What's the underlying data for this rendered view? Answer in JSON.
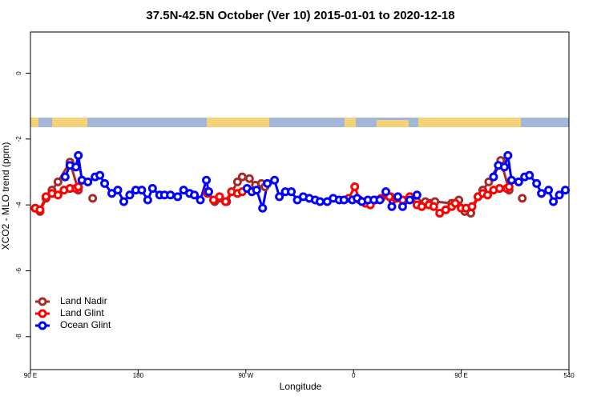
{
  "chart_data": {
    "type": "line",
    "title": "37.5N-42.5N October (Ver 10)   2015-01-01 to 2020-12-18",
    "x_label": "Longitude",
    "y_label": "XCO2 - MLO trend (ppm)",
    "xlim": [
      90,
      540
    ],
    "xticks": [
      {
        "value": 90,
        "label": "90 E"
      },
      180,
      {
        "value": 270,
        "label": "90 W"
      },
      {
        "value": 360,
        "label": "0"
      },
      {
        "value": 450,
        "label": "90 E"
      },
      540
    ],
    "ylim": [
      -9.0,
      1.25
    ],
    "yticks": [
      -8,
      -6,
      -4,
      -2,
      0
    ],
    "legend": "bottom-left",
    "series": [
      {
        "name": "Land Nadir",
        "color": "#a52a2a",
        "x": [
          94,
          98,
          103,
          108,
          113,
          123,
          130,
          null,
          142,
          null,
          238,
          244,
          248,
          254,
          263,
          267,
          273,
          278,
          283,
          286,
          null,
          391,
          395,
          407,
          413,
          420,
          424,
          428,
          442,
          448,
          453,
          458,
          464,
          468,
          473,
          483,
          490,
          null,
          501
        ],
        "values": [
          -4.1,
          -4.2,
          -3.8,
          -3.55,
          -3.3,
          -2.7,
          -3.55,
          null,
          -3.8,
          null,
          -3.6,
          -3.9,
          -3.8,
          -3.9,
          -3.3,
          -3.15,
          -3.2,
          -3.4,
          -3.35,
          -3.45,
          null,
          -3.75,
          -3.8,
          -3.75,
          -3.9,
          -3.9,
          -3.95,
          -3.9,
          -3.95,
          -3.85,
          -4.2,
          -4.25,
          -3.75,
          -3.55,
          -3.3,
          -2.65,
          -3.55,
          null,
          -3.8
        ]
      },
      {
        "name": "Land Glint",
        "color": "#ff0000",
        "x": [
          94,
          98,
          103,
          108,
          113,
          118,
          123,
          128,
          130,
          null,
          238,
          243,
          248,
          253,
          258,
          263,
          267,
          null,
          356,
          361,
          365,
          370,
          374,
          378,
          383,
          390,
          396,
          401,
          407,
          413,
          417,
          423,
          427,
          432,
          437,
          442,
          445,
          450,
          454,
          459,
          464,
          468,
          472,
          477,
          482,
          488,
          490
        ],
        "values": [
          -4.1,
          -4.15,
          -3.75,
          -3.65,
          -3.7,
          -3.55,
          -3.5,
          -3.5,
          -3.45,
          null,
          -3.65,
          -3.85,
          -3.75,
          -3.9,
          -3.6,
          -3.65,
          -3.6,
          null,
          -3.8,
          -3.45,
          -3.85,
          -3.95,
          -4.0,
          -3.85,
          -3.8,
          -3.75,
          -3.8,
          -3.85,
          -3.75,
          -4.0,
          -4.05,
          -4.0,
          -4.05,
          -4.25,
          -4.15,
          -4.05,
          -3.95,
          -4.1,
          -4.1,
          -4.05,
          -3.75,
          -3.65,
          -3.7,
          -3.55,
          -3.5,
          -3.5,
          -3.45
        ]
      },
      {
        "name": "Ocean Glint",
        "color": "#0000ff",
        "x": [
          119,
          123,
          128,
          130,
          133,
          138,
          144,
          148,
          152,
          158,
          163,
          168,
          173,
          178,
          183,
          188,
          192,
          198,
          202,
          207,
          213,
          218,
          223,
          227,
          232,
          237,
          239,
          null,
          271,
          275,
          279,
          284,
          288,
          294,
          298,
          303,
          308,
          313,
          318,
          323,
          328,
          332,
          338,
          343,
          348,
          352,
          359,
          363,
          367,
          372,
          377,
          382,
          387,
          392,
          397,
          401,
          407,
          413,
          null,
          477,
          481,
          486,
          489,
          492,
          498,
          503,
          507,
          513,
          517,
          523,
          527,
          532,
          537
        ],
        "values": [
          -3.15,
          -2.8,
          -2.85,
          -2.5,
          -3.25,
          -3.3,
          -3.15,
          -3.1,
          -3.35,
          -3.65,
          -3.55,
          -3.9,
          -3.7,
          -3.55,
          -3.55,
          -3.85,
          -3.5,
          -3.7,
          -3.7,
          -3.7,
          -3.75,
          -3.55,
          -3.65,
          -3.7,
          -3.85,
          -3.25,
          -3.6,
          null,
          -3.5,
          -3.6,
          -3.55,
          -4.1,
          -3.35,
          -3.25,
          -3.75,
          -3.6,
          -3.6,
          -3.85,
          -3.75,
          -3.8,
          -3.85,
          -3.9,
          -3.9,
          -3.8,
          -3.85,
          -3.85,
          -3.85,
          -3.8,
          -3.9,
          -3.85,
          -3.85,
          -3.85,
          -3.6,
          -4.05,
          -3.75,
          -4.05,
          -3.85,
          -3.7,
          null,
          -3.15,
          -2.8,
          -2.85,
          -2.5,
          -3.25,
          -3.3,
          -3.15,
          -3.1,
          -3.35,
          -3.65,
          -3.55,
          -3.9,
          -3.7,
          -3.55
        ]
      }
    ]
  }
}
